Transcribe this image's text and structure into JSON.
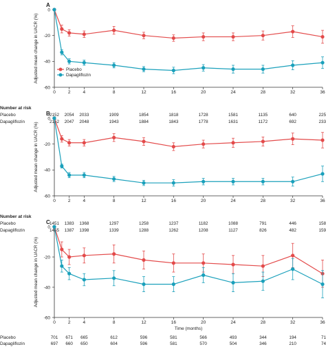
{
  "colors": {
    "placebo": "#e34a4a",
    "dapagliflozin": "#1aa0bb",
    "axis": "#333333"
  },
  "chart_data": [
    {
      "type": "line",
      "panel": "A",
      "ylabel": "Adjusted mean change in UACR (%)",
      "xlabel": "",
      "ylim": [
        -60,
        0
      ],
      "yticks": [
        0,
        -20,
        -40,
        -60
      ],
      "xlim": [
        0,
        36
      ],
      "xticks": [
        0,
        2,
        4,
        8,
        12,
        16,
        20,
        24,
        28,
        32,
        36
      ],
      "grid": false,
      "legend": {
        "position": "left",
        "entries": [
          "Placebo",
          "Dapagliflozin"
        ]
      },
      "series": [
        {
          "name": "Placebo",
          "x": [
            0,
            1,
            2,
            4,
            8,
            12,
            16,
            20,
            24,
            28,
            32,
            36
          ],
          "y": [
            0,
            -15,
            -18,
            -19,
            -16,
            -20,
            -22,
            -21,
            -21,
            -20,
            -17,
            -21
          ],
          "err": [
            0,
            3,
            2.5,
            2.5,
            3,
            2.5,
            2.5,
            3,
            3,
            3.5,
            4.5,
            5
          ]
        },
        {
          "name": "Dapagliflozin",
          "x": [
            0,
            1,
            2,
            4,
            8,
            12,
            16,
            20,
            24,
            28,
            32,
            36
          ],
          "y": [
            0,
            -33,
            -40,
            -41,
            -43,
            -46,
            -47,
            -45,
            -46,
            -46,
            -43,
            -41
          ],
          "err": [
            0,
            2,
            2,
            2,
            2,
            2,
            2.5,
            2.5,
            3,
            3,
            3.5,
            4.5
          ]
        }
      ],
      "risk_table": {
        "header": "Number at risk",
        "times": [
          "0",
          "2",
          "4",
          "8",
          "12",
          "16",
          "20",
          "24",
          "28",
          "32",
          "36"
        ],
        "rows": [
          {
            "label": "Placebo",
            "values": [
              "2152",
              "2054",
              "2033",
              "1909",
              "1854",
              "1818",
              "1728",
              "1581",
              "1135",
              "640",
              "225"
            ]
          },
          {
            "label": "Dapagliflozin",
            "values": [
              "2152",
              "2047",
              "2048",
              "1943",
              "1884",
              "1843",
              "1778",
              "1631",
              "1172",
              "692",
              "233"
            ]
          }
        ]
      }
    },
    {
      "type": "line",
      "panel": "B",
      "ylabel": "Adjusted mean change in UACR (%)",
      "xlabel": "",
      "ylim": [
        -60,
        0
      ],
      "yticks": [
        0,
        -20,
        -40,
        -60
      ],
      "xlim": [
        0,
        36
      ],
      "xticks": [
        0,
        2,
        4,
        8,
        12,
        16,
        20,
        24,
        28,
        32,
        36
      ],
      "grid": false,
      "series": [
        {
          "name": "Placebo",
          "x": [
            0,
            1,
            2,
            4,
            8,
            12,
            16,
            20,
            24,
            28,
            32,
            36
          ],
          "y": [
            0,
            -16,
            -19,
            -19,
            -15,
            -18,
            -22,
            -20,
            -19,
            -18,
            -16,
            -17
          ],
          "err": [
            0,
            2.5,
            2.5,
            2.5,
            3,
            3,
            3,
            3,
            3.5,
            3.5,
            4.5,
            6
          ]
        },
        {
          "name": "Dapagliflozin",
          "x": [
            0,
            1,
            2,
            4,
            8,
            12,
            16,
            20,
            24,
            28,
            32,
            36
          ],
          "y": [
            0,
            -37,
            -44,
            -44,
            -47,
            -50,
            -50,
            -49,
            -49,
            -49,
            -49,
            -43
          ],
          "err": [
            0,
            1.5,
            2,
            2,
            2,
            2,
            2.5,
            2.5,
            2.5,
            2.5,
            3.5,
            6
          ]
        }
      ],
      "risk_table": {
        "header": "Number at risk",
        "times": [
          "0",
          "2",
          "4",
          "8",
          "12",
          "16",
          "20",
          "24",
          "28",
          "32",
          "36"
        ],
        "rows": [
          {
            "label": "Placebo",
            "values": [
              "1451",
              "1383",
              "1368",
              "1297",
              "1258",
              "1237",
              "1182",
              "1088",
              "791",
              "446",
              "158"
            ]
          },
          {
            "label": "Dapagliflozin",
            "values": [
              "1455",
              "1387",
              "1398",
              "1339",
              "1288",
              "1262",
              "1208",
              "1127",
              "826",
              "482",
              "159"
            ]
          }
        ]
      }
    },
    {
      "type": "line",
      "panel": "C",
      "ylabel": "Adjusted mean change in UACR (%)",
      "xlabel": "Time (months)",
      "ylim": [
        -60,
        0
      ],
      "yticks": [
        0,
        -20,
        -40,
        -60
      ],
      "xlim": [
        0,
        36
      ],
      "xticks": [
        0,
        2,
        4,
        8,
        12,
        16,
        20,
        24,
        28,
        32,
        36
      ],
      "grid": false,
      "series": [
        {
          "name": "Placebo",
          "x": [
            0,
            1,
            2,
            4,
            8,
            12,
            16,
            20,
            24,
            28,
            32,
            36
          ],
          "y": [
            0,
            -15,
            -20,
            -19,
            -18,
            -22,
            -24,
            -24,
            -25,
            -26,
            -19,
            -31
          ],
          "err": [
            0,
            5,
            5,
            5,
            6,
            6,
            6,
            6,
            6,
            7,
            8,
            9
          ]
        },
        {
          "name": "Dapagliflozin",
          "x": [
            0,
            1,
            2,
            4,
            8,
            12,
            16,
            20,
            24,
            28,
            32,
            36
          ],
          "y": [
            0,
            -26,
            -31,
            -35,
            -34,
            -38,
            -38,
            -32,
            -37,
            -36,
            -28,
            -38
          ],
          "err": [
            0,
            4,
            4,
            4,
            5,
            5,
            5,
            5,
            6,
            6,
            7,
            9
          ]
        }
      ],
      "risk_table": {
        "header": "",
        "times": [
          "0",
          "2",
          "4",
          "8",
          "12",
          "16",
          "20",
          "24",
          "28",
          "32",
          "36"
        ],
        "rows": [
          {
            "label": "Placebo",
            "values": [
              "701",
              "671",
              "665",
              "612",
              "596",
              "581",
              "566",
              "493",
              "344",
              "194",
              "71"
            ]
          },
          {
            "label": "Dapagliflozin",
            "values": [
              "697",
              "660",
              "650",
              "604",
              "596",
              "581",
              "570",
              "504",
              "346",
              "210",
              "74"
            ]
          }
        ]
      }
    }
  ]
}
